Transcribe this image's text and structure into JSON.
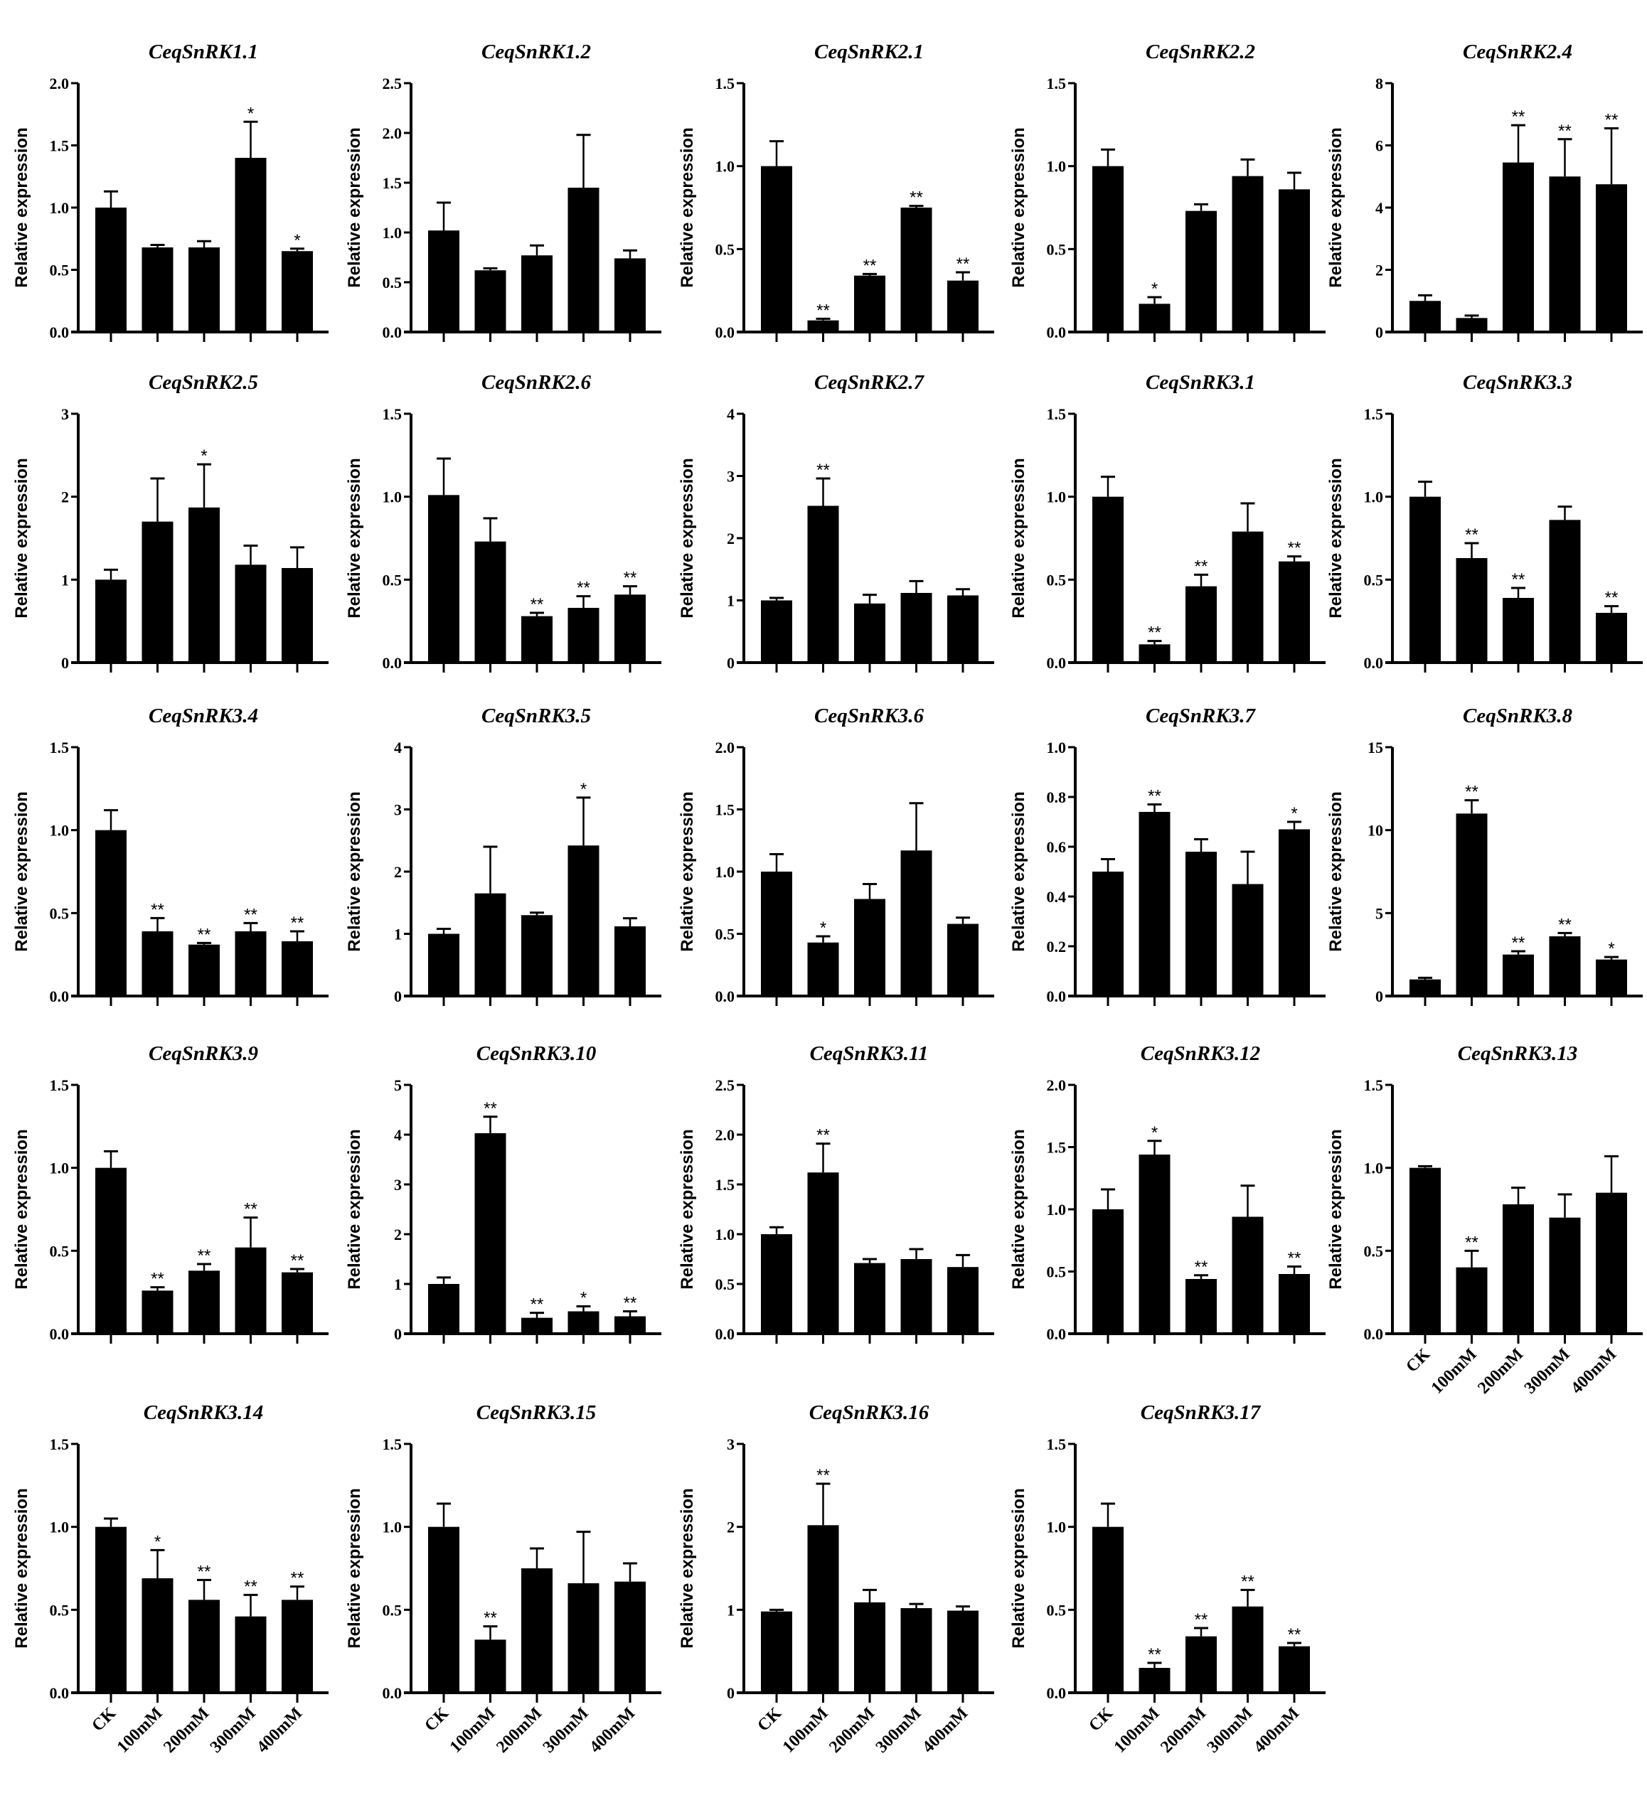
{
  "chart_data": {
    "type": "bar",
    "layout": "5-column grid of small bar charts with error bars",
    "bar_color": "#000000",
    "ylabel": "Relative expression",
    "categories": [
      "CK",
      "100mM",
      "200mM",
      "300mM",
      "400mM"
    ],
    "panels": [
      {
        "title": "CeqSnRK1.1",
        "ylim": [
          0,
          2
        ],
        "ticks": [
          "0.0",
          "0.5",
          "1.0",
          "1.5",
          "2.0"
        ],
        "values": [
          1.0,
          0.68,
          0.68,
          1.4,
          0.65
        ],
        "errors": [
          0.13,
          0.02,
          0.05,
          0.29,
          0.02
        ],
        "sig": [
          "",
          "",
          "",
          "*",
          "*"
        ],
        "show_xlabels": false
      },
      {
        "title": "CeqSnRK1.2",
        "ylim": [
          0,
          2.5
        ],
        "ticks": [
          "0.0",
          "0.5",
          "1.0",
          "1.5",
          "2.0",
          "2.5"
        ],
        "values": [
          1.02,
          0.62,
          0.77,
          1.45,
          0.74
        ],
        "errors": [
          0.28,
          0.02,
          0.1,
          0.53,
          0.08
        ],
        "sig": [
          "",
          "",
          "",
          "",
          ""
        ],
        "show_xlabels": false
      },
      {
        "title": "CeqSnRK2.1",
        "ylim": [
          0,
          1.5
        ],
        "ticks": [
          "0.0",
          "0.5",
          "1.0",
          "1.5"
        ],
        "values": [
          1.0,
          0.07,
          0.34,
          0.75,
          0.31
        ],
        "errors": [
          0.15,
          0.01,
          0.01,
          0.01,
          0.05
        ],
        "sig": [
          "",
          "**",
          "**",
          "**",
          "**"
        ],
        "show_xlabels": false
      },
      {
        "title": "CeqSnRK2.2",
        "ylim": [
          0,
          1.5
        ],
        "ticks": [
          "0.0",
          "0.5",
          "1.0",
          "1.5"
        ],
        "values": [
          1.0,
          0.17,
          0.73,
          0.94,
          0.86
        ],
        "errors": [
          0.1,
          0.04,
          0.04,
          0.1,
          0.1
        ],
        "sig": [
          "",
          "*",
          "",
          "",
          ""
        ],
        "show_xlabels": false
      },
      {
        "title": "CeqSnRK2.4",
        "ylim": [
          0,
          8
        ],
        "ticks": [
          "0",
          "2",
          "4",
          "6",
          "8"
        ],
        "values": [
          1.0,
          0.45,
          5.45,
          5.0,
          4.75
        ],
        "errors": [
          0.18,
          0.08,
          1.2,
          1.2,
          1.8
        ],
        "sig": [
          "",
          "",
          "**",
          "**",
          "**"
        ],
        "show_xlabels": false
      },
      {
        "title": "CeqSnRK2.5",
        "ylim": [
          0,
          3
        ],
        "ticks": [
          "0",
          "1",
          "2",
          "3"
        ],
        "values": [
          1.0,
          1.7,
          1.87,
          1.18,
          1.14
        ],
        "errors": [
          0.12,
          0.52,
          0.52,
          0.23,
          0.25
        ],
        "sig": [
          "",
          "",
          "*",
          "",
          ""
        ],
        "show_xlabels": false
      },
      {
        "title": "CeqSnRK2.6",
        "ylim": [
          0,
          1.5
        ],
        "ticks": [
          "0.0",
          "0.5",
          "1.0",
          "1.5"
        ],
        "values": [
          1.01,
          0.73,
          0.28,
          0.33,
          0.41
        ],
        "errors": [
          0.22,
          0.14,
          0.02,
          0.07,
          0.05
        ],
        "sig": [
          "",
          "",
          "**",
          "**",
          "**"
        ],
        "show_xlabels": false
      },
      {
        "title": "CeqSnRK2.7",
        "ylim": [
          0,
          4
        ],
        "ticks": [
          "0",
          "1",
          "2",
          "3",
          "4"
        ],
        "values": [
          1.0,
          2.52,
          0.95,
          1.12,
          1.08
        ],
        "errors": [
          0.04,
          0.44,
          0.14,
          0.19,
          0.1
        ],
        "sig": [
          "",
          "**",
          "",
          "",
          ""
        ],
        "show_xlabels": false
      },
      {
        "title": "CeqSnRK3.1",
        "ylim": [
          0,
          1.5
        ],
        "ticks": [
          "0.0",
          "0.5",
          "1.0",
          "1.5"
        ],
        "values": [
          1.0,
          0.11,
          0.46,
          0.79,
          0.61
        ],
        "errors": [
          0.12,
          0.02,
          0.07,
          0.17,
          0.03
        ],
        "sig": [
          "",
          "**",
          "**",
          "",
          "**"
        ],
        "show_xlabels": false
      },
      {
        "title": "CeqSnRK3.3",
        "ylim": [
          0,
          1.5
        ],
        "ticks": [
          "0.0",
          "0.5",
          "1.0",
          "1.5"
        ],
        "values": [
          1.0,
          0.63,
          0.39,
          0.86,
          0.3
        ],
        "errors": [
          0.09,
          0.09,
          0.06,
          0.08,
          0.04
        ],
        "sig": [
          "",
          "**",
          "**",
          "",
          "**"
        ],
        "show_xlabels": false
      },
      {
        "title": "CeqSnRK3.4",
        "ylim": [
          0,
          1.5
        ],
        "ticks": [
          "0.0",
          "0.5",
          "1.0",
          "1.5"
        ],
        "values": [
          1.0,
          0.39,
          0.31,
          0.39,
          0.33
        ],
        "errors": [
          0.12,
          0.08,
          0.01,
          0.05,
          0.06
        ],
        "sig": [
          "",
          "**",
          "**",
          "**",
          "**"
        ],
        "show_xlabels": false
      },
      {
        "title": "CeqSnRK3.5",
        "ylim": [
          0,
          4
        ],
        "ticks": [
          "0",
          "1",
          "2",
          "3",
          "4"
        ],
        "values": [
          1.0,
          1.65,
          1.3,
          2.42,
          1.12
        ],
        "errors": [
          0.08,
          0.75,
          0.04,
          0.77,
          0.13
        ],
        "sig": [
          "",
          "",
          "",
          "*",
          ""
        ],
        "show_xlabels": false
      },
      {
        "title": "CeqSnRK3.6",
        "ylim": [
          0,
          2
        ],
        "ticks": [
          "0.0",
          "0.5",
          "1.0",
          "1.5",
          "2.0"
        ],
        "values": [
          1.0,
          0.43,
          0.78,
          1.17,
          0.58
        ],
        "errors": [
          0.14,
          0.05,
          0.12,
          0.38,
          0.05
        ],
        "sig": [
          "",
          "*",
          "",
          "",
          ""
        ],
        "show_xlabels": false
      },
      {
        "title": "CeqSnRK3.7",
        "ylim": [
          0,
          1
        ],
        "ticks": [
          "0.0",
          "0.2",
          "0.4",
          "0.6",
          "0.8",
          "1.0"
        ],
        "values": [
          0.5,
          0.74,
          0.58,
          0.45,
          0.67
        ],
        "errors": [
          0.05,
          0.03,
          0.05,
          0.13,
          0.03
        ],
        "sig": [
          "",
          "**",
          "",
          "",
          "*"
        ],
        "show_xlabels": false
      },
      {
        "title": "CeqSnRK3.8",
        "ylim": [
          0,
          15
        ],
        "ticks": [
          "0",
          "5",
          "10",
          "15"
        ],
        "values": [
          1.0,
          11.0,
          2.5,
          3.6,
          2.2
        ],
        "errors": [
          0.1,
          0.8,
          0.2,
          0.2,
          0.15
        ],
        "sig": [
          "",
          "**",
          "**",
          "**",
          "*"
        ],
        "show_xlabels": false
      },
      {
        "title": "CeqSnRK3.9",
        "ylim": [
          0,
          1.5
        ],
        "ticks": [
          "0.0",
          "0.5",
          "1.0",
          "1.5"
        ],
        "values": [
          1.0,
          0.26,
          0.38,
          0.52,
          0.37
        ],
        "errors": [
          0.1,
          0.02,
          0.04,
          0.18,
          0.02
        ],
        "sig": [
          "",
          "**",
          "**",
          "**",
          "**"
        ],
        "show_xlabels": false
      },
      {
        "title": "CeqSnRK3.10",
        "ylim": [
          0,
          5
        ],
        "ticks": [
          "0",
          "1",
          "2",
          "3",
          "4",
          "5"
        ],
        "values": [
          1.0,
          4.03,
          0.32,
          0.45,
          0.35
        ],
        "errors": [
          0.13,
          0.33,
          0.1,
          0.1,
          0.1
        ],
        "sig": [
          "",
          "**",
          "**",
          "*",
          "**"
        ],
        "show_xlabels": false
      },
      {
        "title": "CeqSnRK3.11",
        "ylim": [
          0,
          2.5
        ],
        "ticks": [
          "0.0",
          "0.5",
          "1.0",
          "1.5",
          "2.0",
          "2.5"
        ],
        "values": [
          1.0,
          1.62,
          0.71,
          0.75,
          0.67
        ],
        "errors": [
          0.07,
          0.29,
          0.04,
          0.1,
          0.12
        ],
        "sig": [
          "",
          "**",
          "",
          "",
          ""
        ],
        "show_xlabels": false
      },
      {
        "title": "CeqSnRK3.12",
        "ylim": [
          0,
          2
        ],
        "ticks": [
          "0.0",
          "0.5",
          "1.0",
          "1.5",
          "2.0"
        ],
        "values": [
          1.0,
          1.44,
          0.44,
          0.94,
          0.48
        ],
        "errors": [
          0.16,
          0.11,
          0.03,
          0.25,
          0.06
        ],
        "sig": [
          "",
          "*",
          "**",
          "",
          "**"
        ],
        "show_xlabels": false
      },
      {
        "title": "CeqSnRK3.13",
        "ylim": [
          0,
          1.5
        ],
        "ticks": [
          "0.0",
          "0.5",
          "1.0",
          "1.5"
        ],
        "values": [
          1.0,
          0.4,
          0.78,
          0.7,
          0.85
        ],
        "errors": [
          0.01,
          0.1,
          0.1,
          0.14,
          0.22
        ],
        "sig": [
          "",
          "**",
          "",
          "",
          ""
        ],
        "show_xlabels": true
      },
      {
        "title": "CeqSnRK3.14",
        "ylim": [
          0,
          1.5
        ],
        "ticks": [
          "0.0",
          "0.5",
          "1.0",
          "1.5"
        ],
        "values": [
          1.0,
          0.69,
          0.56,
          0.46,
          0.56
        ],
        "errors": [
          0.05,
          0.17,
          0.12,
          0.13,
          0.08
        ],
        "sig": [
          "",
          "*",
          "**",
          "**",
          "**"
        ],
        "show_xlabels": true
      },
      {
        "title": "CeqSnRK3.15",
        "ylim": [
          0,
          1.5
        ],
        "ticks": [
          "0.0",
          "0.5",
          "1.0",
          "1.5"
        ],
        "values": [
          1.0,
          0.32,
          0.75,
          0.66,
          0.67
        ],
        "errors": [
          0.14,
          0.08,
          0.12,
          0.31,
          0.11
        ],
        "sig": [
          "",
          "**",
          "",
          "",
          ""
        ],
        "show_xlabels": true
      },
      {
        "title": "CeqSnRK3.16",
        "ylim": [
          0,
          3
        ],
        "ticks": [
          "0",
          "1",
          "2",
          "3"
        ],
        "values": [
          0.98,
          2.02,
          1.09,
          1.02,
          0.99
        ],
        "errors": [
          0.02,
          0.5,
          0.15,
          0.05,
          0.05
        ],
        "sig": [
          "",
          "**",
          "",
          "",
          ""
        ],
        "show_xlabels": true
      },
      {
        "title": "CeqSnRK3.17",
        "ylim": [
          0,
          1.5
        ],
        "ticks": [
          "0.0",
          "0.5",
          "1.0",
          "1.5"
        ],
        "values": [
          1.0,
          0.15,
          0.34,
          0.52,
          0.28
        ],
        "errors": [
          0.14,
          0.03,
          0.05,
          0.1,
          0.02
        ],
        "sig": [
          "",
          "**",
          "**",
          "**",
          "**"
        ],
        "show_xlabels": true
      }
    ]
  }
}
